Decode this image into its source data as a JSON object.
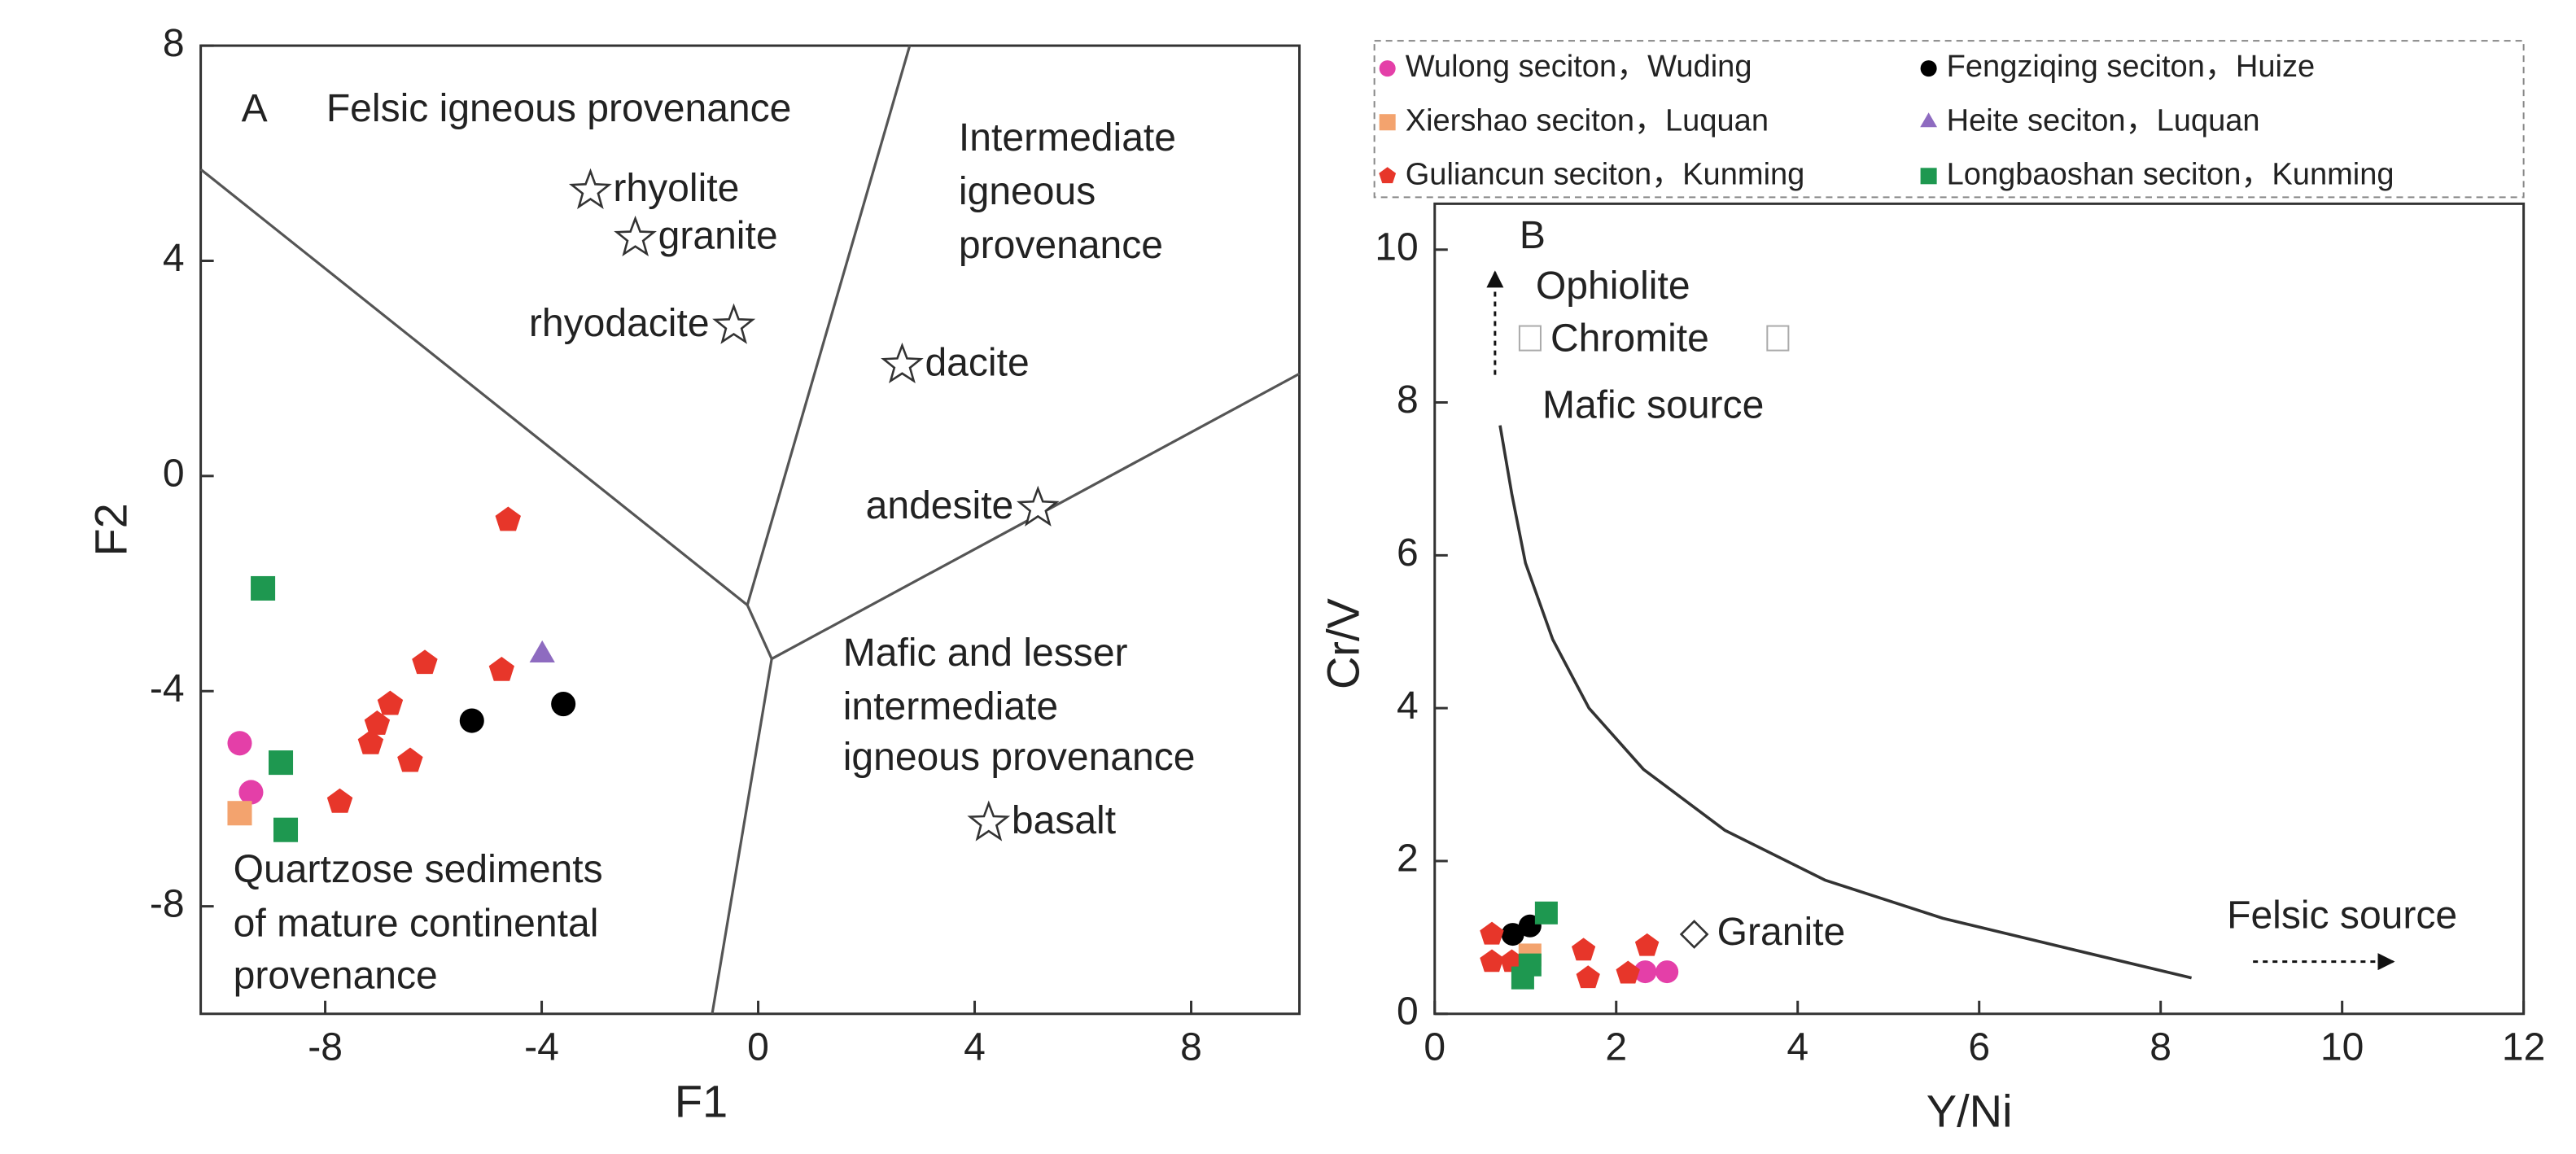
{
  "chart_data": [
    {
      "type": "scatter",
      "panel": "A",
      "x_label": "F1",
      "y_label": "F2",
      "xlim": [
        -10.3,
        10
      ],
      "ylim": [
        -10,
        8
      ],
      "xticks": [
        -8,
        -4,
        0,
        4,
        8
      ],
      "yticks": [
        -8,
        -4,
        0,
        4,
        8
      ],
      "regions": [
        [
          "Felsic igneous provenance"
        ],
        [
          "Intermediate",
          "igneous",
          "provenance"
        ],
        [
          "Mafic and lesser",
          "intermediate",
          "igneous provenance"
        ],
        [
          "Quartzose sediments",
          "of mature continental",
          "provenance"
        ]
      ],
      "boundaries": [
        {
          "x": [
            -10.3,
            -0.2
          ],
          "y": [
            5.7,
            -2.4
          ]
        },
        {
          "x": [
            -0.2,
            0.25
          ],
          "y": [
            -2.4,
            -3.4
          ]
        },
        {
          "x": [
            -0.2,
            2.8
          ],
          "y": [
            -2.4,
            8
          ]
        },
        {
          "x": [
            0.25,
            10
          ],
          "y": [
            -3.4,
            1.9
          ]
        },
        {
          "x": [
            0.25,
            -0.85
          ],
          "y": [
            -3.4,
            -10
          ]
        }
      ],
      "references": {
        "labels": [
          "rhyolite",
          "granite",
          "rhyodacite",
          "dacite",
          "andesite",
          "basalt"
        ],
        "x": [
          -3.1,
          -2.27,
          -0.45,
          2.66,
          5.17,
          4.26
        ],
        "y": [
          5.3,
          4.42,
          2.79,
          2.06,
          -0.6,
          -6.45
        ]
      },
      "series": [
        {
          "color": "#e43fa8",
          "marker": "circle",
          "x": [
            -9.58,
            -9.37
          ],
          "y": [
            -4.97,
            -5.88
          ]
        },
        {
          "color": "#000000",
          "marker": "circle",
          "x": [
            -5.29,
            -3.6
          ],
          "y": [
            -4.55,
            -4.24
          ]
        },
        {
          "color": "#f3a36e",
          "marker": "square",
          "x": [
            -9.58
          ],
          "y": [
            -6.27
          ]
        },
        {
          "color": "#8e6bc0",
          "marker": "triangle",
          "x": [
            -3.99
          ],
          "y": [
            -3.33
          ]
        },
        {
          "color": "#e7362a",
          "marker": "pentagon",
          "x": [
            -4.62,
            -6.16,
            -4.74,
            -6.8,
            -7.04,
            -7.16,
            -6.43,
            -7.73
          ],
          "y": [
            -0.82,
            -3.48,
            -3.61,
            -4.24,
            -4.61,
            -4.97,
            -5.3,
            -6.06
          ]
        },
        {
          "color": "#1e9850",
          "marker": "square",
          "x": [
            -9.15,
            -8.82,
            -8.73
          ],
          "y": [
            -2.09,
            -5.33,
            -6.58
          ]
        }
      ]
    },
    {
      "type": "scatter",
      "panel": "B",
      "x_label": "Y/Ni",
      "y_label": "Cr/V",
      "xlim": [
        0,
        12
      ],
      "ylim": [
        0,
        10.6
      ],
      "xticks": [
        0,
        2,
        4,
        6,
        8,
        10,
        12
      ],
      "yticks": [
        0,
        2,
        4,
        6,
        8,
        10
      ],
      "annotations": {
        "ophiolite": "Ophiolite",
        "chromite": "Chromite",
        "mafic": "Mafic source",
        "felsic": "Felsic source"
      },
      "curve": {
        "x": [
          0.72,
          0.85,
          1.0,
          1.3,
          1.7,
          2.3,
          3.2,
          4.3,
          5.6,
          7.0,
          8.34
        ],
        "y": [
          7.7,
          6.8,
          5.9,
          4.9,
          4.0,
          3.2,
          2.4,
          1.75,
          1.25,
          0.85,
          0.47
        ]
      },
      "references": {
        "labels": [
          "Granite"
        ],
        "x": [
          2.86
        ],
        "y": [
          1.04
        ]
      },
      "series": [
        {
          "name": "Wulong seciton，Wuding",
          "color": "#e43fa8",
          "marker": "circle",
          "x": [
            2.32,
            2.56
          ],
          "y": [
            0.55,
            0.55
          ]
        },
        {
          "name": "Fengziqing seciton，Huize",
          "color": "#000000",
          "marker": "circle",
          "x": [
            0.86,
            1.05
          ],
          "y": [
            1.04,
            1.15
          ]
        },
        {
          "name": "Xiershao seciton，Luquan",
          "color": "#f3a36e",
          "marker": "square",
          "x": [
            1.05
          ],
          "y": [
            0.77
          ]
        },
        {
          "name": "Heite seciton，Luquan",
          "color": "#8e6bc0",
          "marker": "triangle",
          "x": [],
          "y": []
        },
        {
          "name": "Guliancun seciton，Kunming",
          "color": "#e7362a",
          "marker": "pentagon",
          "x": [
            0.63,
            0.63,
            0.85,
            1.64,
            1.69,
            2.13,
            2.34
          ],
          "y": [
            1.04,
            0.68,
            0.68,
            0.83,
            0.47,
            0.53,
            0.89
          ]
        },
        {
          "name": "Longbaoshan seciton，Kunming",
          "color": "#1e9850",
          "marker": "square",
          "x": [
            1.23,
            0.97,
            1.05
          ],
          "y": [
            1.32,
            0.47,
            0.64
          ]
        }
      ]
    }
  ]
}
